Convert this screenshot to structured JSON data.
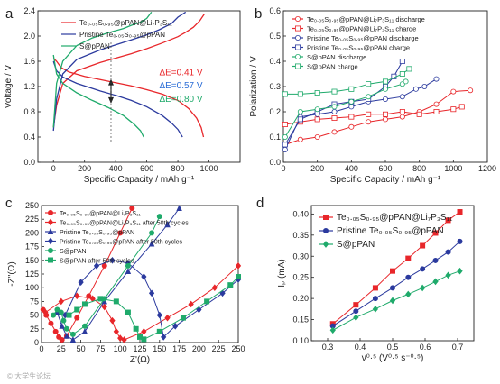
{
  "panels": {
    "a": "a",
    "b": "b",
    "c": "c",
    "d": "d"
  },
  "watermark": "© 大学生论坛",
  "chart_data": [
    {
      "id": "a",
      "type": "line",
      "xlabel": "Specific Capacity / mAh g⁻¹",
      "ylabel": "Voltage / V",
      "xlim": [
        -100,
        1200
      ],
      "ylim": [
        0.0,
        2.4
      ],
      "xticks": [
        0,
        200,
        400,
        600,
        800,
        1000
      ],
      "yticks": [
        0.0,
        0.4,
        0.8,
        1.2,
        1.6,
        2.0,
        2.4
      ],
      "legend": [
        {
          "name": "Te₀.₀₅S₀.₉₅@pPAN@Li₇P₃S₁₁",
          "color": "#e8262a"
        },
        {
          "name": "Pristine Te₀.₀₅S₀.₉₅@pPAN",
          "color": "#2b3a9e"
        },
        {
          "name": "S@pPAN",
          "color": "#1faa6b"
        }
      ],
      "annotations": [
        {
          "text": "ΔE=0.41 V",
          "color": "#e8262a"
        },
        {
          "text": "ΔE=0.57 V",
          "color": "#2b6dd6"
        },
        {
          "text": "ΔE=0.80 V",
          "color": "#1faa6b"
        }
      ],
      "series": [
        {
          "name": "red-discharge",
          "color": "#e8262a",
          "x": [
            0,
            20,
            50,
            100,
            200,
            300,
            400,
            500,
            600,
            700,
            800,
            870,
            920,
            950,
            965
          ],
          "y": [
            1.65,
            1.6,
            1.5,
            1.43,
            1.36,
            1.31,
            1.26,
            1.21,
            1.15,
            1.08,
            0.98,
            0.85,
            0.7,
            0.55,
            0.4
          ]
        },
        {
          "name": "red-charge",
          "color": "#e8262a",
          "x": [
            0,
            20,
            60,
            150,
            300,
            400,
            500,
            600,
            700,
            800,
            850,
            900,
            940,
            970
          ],
          "y": [
            0.55,
            0.9,
            1.25,
            1.45,
            1.58,
            1.65,
            1.72,
            1.8,
            1.89,
            1.99,
            2.06,
            2.14,
            2.24,
            2.35
          ]
        },
        {
          "name": "blue-discharge",
          "color": "#2b3a9e",
          "x": [
            0,
            20,
            60,
            150,
            300,
            400,
            500,
            600,
            700,
            760,
            800,
            830
          ],
          "y": [
            1.6,
            1.45,
            1.35,
            1.25,
            1.13,
            1.06,
            0.98,
            0.88,
            0.74,
            0.62,
            0.52,
            0.4
          ]
        },
        {
          "name": "blue-charge",
          "color": "#2b3a9e",
          "x": [
            0,
            20,
            60,
            150,
            300,
            400,
            500,
            600,
            680,
            760,
            800,
            850
          ],
          "y": [
            0.5,
            1.0,
            1.4,
            1.63,
            1.78,
            1.86,
            1.94,
            2.02,
            2.1,
            2.2,
            2.3,
            2.38
          ]
        },
        {
          "name": "green-discharge",
          "color": "#1faa6b",
          "x": [
            0,
            20,
            60,
            150,
            250,
            350,
            450,
            520,
            560,
            580
          ],
          "y": [
            1.7,
            1.4,
            1.25,
            1.1,
            0.98,
            0.87,
            0.74,
            0.6,
            0.5,
            0.4
          ]
        },
        {
          "name": "green-charge",
          "color": "#1faa6b",
          "x": [
            0,
            20,
            60,
            150,
            250,
            350,
            450,
            500,
            560,
            600,
            630
          ],
          "y": [
            0.55,
            1.25,
            1.6,
            1.85,
            1.97,
            2.05,
            2.12,
            2.17,
            2.22,
            2.28,
            2.38
          ]
        }
      ]
    },
    {
      "id": "b",
      "type": "line",
      "xlabel": "Specific Capacity / mAh g⁻¹",
      "ylabel": "Polarization / V",
      "xlim": [
        0,
        1200
      ],
      "ylim": [
        0.0,
        0.6
      ],
      "xticks": [
        0,
        200,
        400,
        600,
        800,
        1000,
        1200
      ],
      "yticks": [
        0.0,
        0.1,
        0.2,
        0.3,
        0.4,
        0.5,
        0.6
      ],
      "legend": [
        {
          "name": "Te₀.₀₅S₀.₉₅@pPAN@Li₇P₃S₁₁ discharge",
          "color": "#e8262a",
          "marker": "circle"
        },
        {
          "name": "Te₀.₀₅S₀.₉₅@pPAN@Li₇P₃S₁₁ charge",
          "color": "#e8262a",
          "marker": "square"
        },
        {
          "name": "Pristine Te₀.₀₅S₀.₉₅@pPAN discharge",
          "color": "#2b3a9e",
          "marker": "circle"
        },
        {
          "name": "Pristine Te₀.₀₅S₀.₉₅@pPAN charge",
          "color": "#2b3a9e",
          "marker": "square"
        },
        {
          "name": "S@pPAN discharge",
          "color": "#1faa6b",
          "marker": "circle"
        },
        {
          "name": "S@pPAN charge",
          "color": "#1faa6b",
          "marker": "square"
        }
      ],
      "series": [
        {
          "name": "red-discharge",
          "color": "#e8262a",
          "x": [
            10,
            100,
            200,
            300,
            400,
            500,
            600,
            700,
            800,
            900,
            1000,
            1100
          ],
          "y": [
            0.07,
            0.09,
            0.1,
            0.12,
            0.14,
            0.16,
            0.17,
            0.18,
            0.2,
            0.23,
            0.28,
            0.285
          ]
        },
        {
          "name": "red-charge",
          "color": "#e8262a",
          "x": [
            10,
            100,
            200,
            300,
            400,
            500,
            600,
            700,
            800,
            900,
            1000,
            1050
          ],
          "y": [
            0.15,
            0.16,
            0.17,
            0.175,
            0.18,
            0.19,
            0.19,
            0.2,
            0.19,
            0.2,
            0.21,
            0.22
          ]
        },
        {
          "name": "blue-discharge",
          "color": "#2b3a9e",
          "x": [
            10,
            100,
            200,
            300,
            400,
            500,
            600,
            700,
            780,
            830,
            900
          ],
          "y": [
            0.05,
            0.18,
            0.19,
            0.2,
            0.22,
            0.24,
            0.25,
            0.26,
            0.29,
            0.3,
            0.33
          ]
        },
        {
          "name": "blue-charge",
          "color": "#2b3a9e",
          "x": [
            10,
            100,
            200,
            300,
            400,
            500,
            600,
            650,
            700
          ],
          "y": [
            0.07,
            0.17,
            0.2,
            0.23,
            0.24,
            0.25,
            0.3,
            0.34,
            0.4
          ]
        },
        {
          "name": "green-discharge",
          "color": "#1faa6b",
          "x": [
            10,
            100,
            200,
            300,
            400,
            500,
            600,
            700,
            720
          ],
          "y": [
            0.1,
            0.2,
            0.21,
            0.22,
            0.24,
            0.26,
            0.29,
            0.31,
            0.32
          ]
        },
        {
          "name": "green-charge",
          "color": "#1faa6b",
          "x": [
            10,
            100,
            200,
            300,
            400,
            500,
            600,
            700,
            740
          ],
          "y": [
            0.27,
            0.27,
            0.275,
            0.28,
            0.29,
            0.31,
            0.32,
            0.35,
            0.37
          ]
        }
      ]
    },
    {
      "id": "c",
      "type": "scatter",
      "xlabel": "Z'(Ω)",
      "ylabel": "-Z''(Ω)",
      "xlim": [
        0,
        250
      ],
      "ylim": [
        0,
        250
      ],
      "xticks": [
        0,
        25,
        50,
        75,
        100,
        125,
        150,
        175,
        200,
        225,
        250
      ],
      "yticks": [
        0,
        25,
        50,
        75,
        100,
        125,
        150,
        175,
        200,
        225,
        250
      ],
      "legend": [
        {
          "name": "Te₀.₀₅S₀.₉₅@pPAN@Li₇P₃S₁₁",
          "color": "#e8262a",
          "marker": "circle"
        },
        {
          "name": "Te₀.₀₅S₀.₉₅@pPAN@Li₇P₃S₁₁ after 50th cycles",
          "color": "#e8262a",
          "marker": "diamond"
        },
        {
          "name": "Pristine Te₀.₀₅S₀.₉₅@pPAN",
          "color": "#2b3a9e",
          "marker": "triangle"
        },
        {
          "name": "Pristine Te₀.₀₅S₀.₉₅@pPAN after 50th cycles",
          "color": "#2b3a9e",
          "marker": "diamond"
        },
        {
          "name": "S@pPAN",
          "color": "#1faa6b",
          "marker": "circle"
        },
        {
          "name": "S@pPAN after 50th cycles",
          "color": "#1faa6b",
          "marker": "square"
        }
      ],
      "series": [
        {
          "name": "red-fresh",
          "color": "#e8262a",
          "x": [
            2,
            6,
            12,
            18,
            22,
            26,
            32,
            45,
            60,
            80,
            100,
            115
          ],
          "y": [
            60,
            50,
            35,
            20,
            10,
            5,
            12,
            45,
            85,
            140,
            200,
            245
          ]
        },
        {
          "name": "red-50",
          "color": "#e8262a",
          "x": [
            5,
            25,
            45,
            65,
            80,
            90,
            95,
            100,
            105,
            130,
            160,
            190,
            220,
            250
          ],
          "y": [
            55,
            75,
            85,
            80,
            65,
            40,
            20,
            8,
            5,
            20,
            45,
            70,
            100,
            140
          ]
        },
        {
          "name": "blue-fresh",
          "color": "#2b3a9e",
          "x": [
            20,
            26,
            32,
            40,
            55,
            80,
            110,
            140,
            160,
            175
          ],
          "y": [
            55,
            30,
            12,
            5,
            20,
            75,
            130,
            180,
            215,
            245
          ]
        },
        {
          "name": "blue-50",
          "color": "#2b3a9e",
          "x": [
            30,
            50,
            70,
            90,
            110,
            130,
            140,
            150,
            155,
            170,
            200,
            230,
            250
          ],
          "y": [
            50,
            110,
            140,
            150,
            145,
            120,
            90,
            50,
            10,
            30,
            60,
            90,
            115
          ]
        },
        {
          "name": "green-fresh",
          "color": "#1faa6b",
          "x": [
            15,
            20,
            25,
            28,
            32,
            40,
            55,
            80,
            110,
            140,
            150
          ],
          "y": [
            50,
            60,
            55,
            40,
            25,
            15,
            30,
            80,
            140,
            200,
            230
          ]
        },
        {
          "name": "green-50",
          "color": "#1faa6b",
          "x": [
            35,
            45,
            55,
            75,
            95,
            110,
            120,
            125,
            130,
            150,
            180,
            210,
            240,
            250
          ],
          "y": [
            50,
            60,
            70,
            80,
            75,
            55,
            25,
            10,
            6,
            20,
            45,
            75,
            105,
            120
          ]
        }
      ]
    },
    {
      "id": "d",
      "type": "line",
      "xlabel": "ν⁰·⁵ (V⁰·⁵ s⁻⁰·⁵)",
      "ylabel": "Iₚ (mA)",
      "xlim": [
        0.25,
        0.75
      ],
      "ylim": [
        0.1,
        0.42
      ],
      "xticks": [
        0.3,
        0.4,
        0.5,
        0.6,
        0.7
      ],
      "yticks": [
        0.1,
        0.15,
        0.2,
        0.25,
        0.3,
        0.35,
        0.4
      ],
      "legend": [
        {
          "name": "Te₀.₀₅S₀.₉₅@pPAN@Li₇P₃S₁₁",
          "color": "#e8262a",
          "marker": "square"
        },
        {
          "name": "Pristine Te₀.₀₅S₀.₉₅@pPAN",
          "color": "#2b3a9e",
          "marker": "circle"
        },
        {
          "name": "S@pPAN",
          "color": "#1faa6b",
          "marker": "diamond"
        }
      ],
      "series": [
        {
          "name": "red",
          "color": "#e8262a",
          "x": [
            0.316,
            0.387,
            0.447,
            0.5,
            0.548,
            0.592,
            0.632,
            0.671,
            0.707
          ],
          "y": [
            0.14,
            0.185,
            0.225,
            0.265,
            0.295,
            0.325,
            0.355,
            0.385,
            0.405
          ]
        },
        {
          "name": "blue",
          "color": "#2b3a9e",
          "x": [
            0.316,
            0.387,
            0.447,
            0.5,
            0.548,
            0.592,
            0.632,
            0.671,
            0.707
          ],
          "y": [
            0.135,
            0.17,
            0.2,
            0.225,
            0.25,
            0.27,
            0.29,
            0.31,
            0.335
          ]
        },
        {
          "name": "green",
          "color": "#1faa6b",
          "x": [
            0.316,
            0.387,
            0.447,
            0.5,
            0.548,
            0.592,
            0.632,
            0.671,
            0.707
          ],
          "y": [
            0.125,
            0.155,
            0.175,
            0.195,
            0.21,
            0.225,
            0.24,
            0.255,
            0.265
          ]
        }
      ]
    }
  ]
}
